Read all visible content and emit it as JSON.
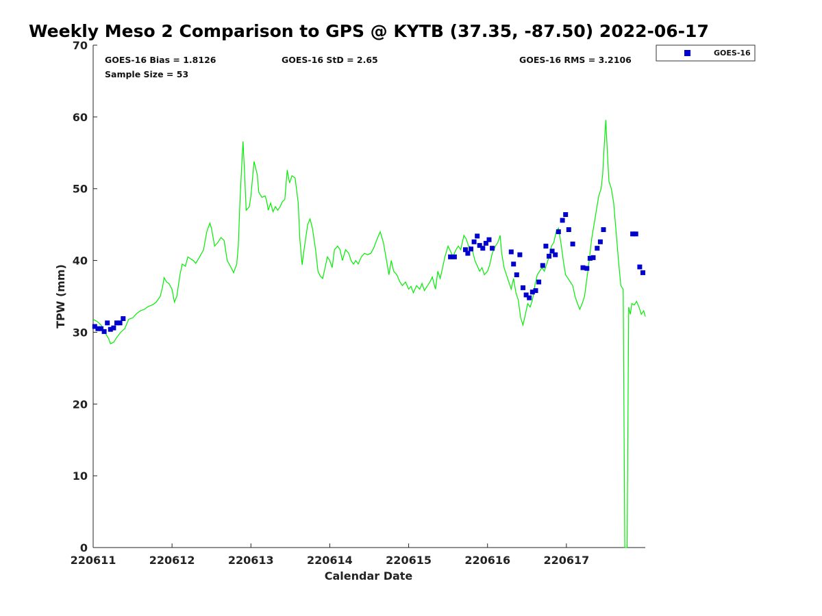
{
  "chart_data": {
    "type": "line",
    "title": "Weekly Meso 2 Comparison to GPS @ KYTB (37.35, -87.50) 2022-06-17",
    "xlabel": "Calendar Date",
    "ylabel": "TPW (mm)",
    "xlim": [
      0,
      7
    ],
    "ylim": [
      0,
      70
    ],
    "yticks": [
      0,
      10,
      20,
      30,
      40,
      50,
      60,
      70
    ],
    "xticks": [
      {
        "value": 0,
        "label": "220611"
      },
      {
        "value": 1,
        "label": "220612"
      },
      {
        "value": 2,
        "label": "220613"
      },
      {
        "value": 3,
        "label": "220614"
      },
      {
        "value": 4,
        "label": "220615"
      },
      {
        "value": 5,
        "label": "220616"
      },
      {
        "value": 6,
        "label": "220617"
      }
    ],
    "grid": false,
    "legend_position": "top-right-outside",
    "annotations": {
      "bias": "GOES-16 Bias = 1.8126",
      "std": "GOES-16 StD = 2.65",
      "rms": "GOES-16 RMS = 3.2106",
      "sample": "Sample Size = 53"
    },
    "series": [
      {
        "kind": "line",
        "color": "#00ee00",
        "points": [
          [
            0.0,
            31.8
          ],
          [
            0.05,
            31.5
          ],
          [
            0.1,
            31.0
          ],
          [
            0.15,
            30.0
          ],
          [
            0.2,
            29.0
          ],
          [
            0.22,
            28.4
          ],
          [
            0.26,
            28.6
          ],
          [
            0.3,
            29.3
          ],
          [
            0.35,
            30.0
          ],
          [
            0.4,
            30.5
          ],
          [
            0.45,
            31.8
          ],
          [
            0.5,
            32.0
          ],
          [
            0.55,
            32.6
          ],
          [
            0.6,
            33.0
          ],
          [
            0.65,
            33.2
          ],
          [
            0.7,
            33.6
          ],
          [
            0.75,
            33.8
          ],
          [
            0.8,
            34.2
          ],
          [
            0.85,
            35.0
          ],
          [
            0.88,
            36.3
          ],
          [
            0.9,
            37.6
          ],
          [
            0.93,
            37.0
          ],
          [
            0.96,
            36.8
          ],
          [
            1.0,
            36.0
          ],
          [
            1.03,
            34.2
          ],
          [
            1.06,
            35.0
          ],
          [
            1.1,
            38.0
          ],
          [
            1.13,
            39.5
          ],
          [
            1.17,
            39.2
          ],
          [
            1.2,
            40.5
          ],
          [
            1.24,
            40.2
          ],
          [
            1.27,
            40.0
          ],
          [
            1.3,
            39.6
          ],
          [
            1.35,
            40.5
          ],
          [
            1.4,
            41.5
          ],
          [
            1.44,
            44.0
          ],
          [
            1.48,
            45.2
          ],
          [
            1.5,
            44.5
          ],
          [
            1.54,
            42.0
          ],
          [
            1.58,
            42.5
          ],
          [
            1.62,
            43.2
          ],
          [
            1.66,
            42.8
          ],
          [
            1.7,
            40.0
          ],
          [
            1.75,
            39.0
          ],
          [
            1.78,
            38.3
          ],
          [
            1.82,
            39.5
          ],
          [
            1.84,
            42.0
          ],
          [
            1.86,
            48.0
          ],
          [
            1.88,
            52.5
          ],
          [
            1.9,
            56.6
          ],
          [
            1.92,
            52.0
          ],
          [
            1.94,
            47.0
          ],
          [
            1.98,
            47.5
          ],
          [
            2.0,
            49.0
          ],
          [
            2.04,
            53.8
          ],
          [
            2.08,
            52.0
          ],
          [
            2.1,
            49.5
          ],
          [
            2.14,
            48.8
          ],
          [
            2.18,
            49.0
          ],
          [
            2.2,
            48.3
          ],
          [
            2.22,
            47.0
          ],
          [
            2.25,
            48.0
          ],
          [
            2.28,
            46.8
          ],
          [
            2.31,
            47.5
          ],
          [
            2.34,
            47.0
          ],
          [
            2.37,
            47.5
          ],
          [
            2.4,
            48.2
          ],
          [
            2.43,
            48.5
          ],
          [
            2.46,
            52.6
          ],
          [
            2.49,
            50.8
          ],
          [
            2.52,
            51.8
          ],
          [
            2.56,
            51.5
          ],
          [
            2.6,
            48.0
          ],
          [
            2.62,
            43.0
          ],
          [
            2.65,
            39.4
          ],
          [
            2.68,
            42.0
          ],
          [
            2.72,
            45.0
          ],
          [
            2.75,
            45.8
          ],
          [
            2.78,
            44.5
          ],
          [
            2.82,
            41.5
          ],
          [
            2.85,
            38.5
          ],
          [
            2.88,
            37.8
          ],
          [
            2.91,
            37.5
          ],
          [
            2.94,
            39.0
          ],
          [
            2.97,
            40.5
          ],
          [
            3.0,
            40.0
          ],
          [
            3.03,
            39.0
          ],
          [
            3.06,
            41.5
          ],
          [
            3.1,
            42.0
          ],
          [
            3.13,
            41.5
          ],
          [
            3.16,
            40.0
          ],
          [
            3.2,
            41.5
          ],
          [
            3.24,
            41.0
          ],
          [
            3.27,
            40.0
          ],
          [
            3.3,
            39.5
          ],
          [
            3.33,
            40.0
          ],
          [
            3.36,
            39.5
          ],
          [
            3.4,
            40.5
          ],
          [
            3.44,
            41.0
          ],
          [
            3.48,
            40.8
          ],
          [
            3.52,
            41.0
          ],
          [
            3.56,
            41.8
          ],
          [
            3.6,
            43.0
          ],
          [
            3.64,
            44.0
          ],
          [
            3.68,
            42.5
          ],
          [
            3.72,
            40.0
          ],
          [
            3.75,
            38.0
          ],
          [
            3.78,
            40.0
          ],
          [
            3.81,
            38.5
          ],
          [
            3.85,
            38.0
          ],
          [
            3.89,
            37.0
          ],
          [
            3.92,
            36.5
          ],
          [
            3.96,
            37.0
          ],
          [
            4.0,
            36.0
          ],
          [
            4.03,
            36.4
          ],
          [
            4.06,
            35.5
          ],
          [
            4.1,
            36.5
          ],
          [
            4.14,
            36.0
          ],
          [
            4.17,
            36.8
          ],
          [
            4.2,
            35.8
          ],
          [
            4.24,
            36.5
          ],
          [
            4.27,
            37.0
          ],
          [
            4.3,
            37.7
          ],
          [
            4.34,
            36.0
          ],
          [
            4.37,
            38.5
          ],
          [
            4.4,
            37.5
          ],
          [
            4.43,
            39.0
          ],
          [
            4.46,
            40.5
          ],
          [
            4.5,
            42.0
          ],
          [
            4.53,
            41.3
          ],
          [
            4.56,
            40.5
          ],
          [
            4.6,
            41.5
          ],
          [
            4.63,
            42.0
          ],
          [
            4.66,
            41.5
          ],
          [
            4.7,
            43.5
          ],
          [
            4.73,
            43.0
          ],
          [
            4.76,
            42.0
          ],
          [
            4.8,
            41.8
          ],
          [
            4.84,
            40.0
          ],
          [
            4.88,
            39.0
          ],
          [
            4.9,
            38.5
          ],
          [
            4.93,
            39.0
          ],
          [
            4.96,
            38.0
          ],
          [
            5.0,
            38.5
          ],
          [
            5.03,
            39.5
          ],
          [
            5.06,
            41.0
          ],
          [
            5.1,
            42.0
          ],
          [
            5.13,
            42.5
          ],
          [
            5.16,
            43.5
          ],
          [
            5.18,
            41.0
          ],
          [
            5.21,
            39.0
          ],
          [
            5.24,
            38.0
          ],
          [
            5.27,
            37.0
          ],
          [
            5.3,
            36.0
          ],
          [
            5.33,
            37.5
          ],
          [
            5.36,
            35.5
          ],
          [
            5.39,
            34.5
          ],
          [
            5.42,
            32.0
          ],
          [
            5.45,
            31.0
          ],
          [
            5.48,
            32.5
          ],
          [
            5.51,
            34.0
          ],
          [
            5.54,
            33.5
          ],
          [
            5.57,
            34.5
          ],
          [
            5.6,
            36.5
          ],
          [
            5.63,
            38.0
          ],
          [
            5.66,
            38.5
          ],
          [
            5.69,
            39.0
          ],
          [
            5.72,
            38.5
          ],
          [
            5.75,
            39.5
          ],
          [
            5.78,
            40.5
          ],
          [
            5.81,
            42.0
          ],
          [
            5.84,
            42.5
          ],
          [
            5.87,
            44.0
          ],
          [
            5.9,
            44.5
          ],
          [
            5.93,
            42.5
          ],
          [
            5.96,
            40.0
          ],
          [
            5.99,
            38.0
          ],
          [
            6.02,
            37.5
          ],
          [
            6.05,
            37.0
          ],
          [
            6.08,
            36.5
          ],
          [
            6.11,
            35.0
          ],
          [
            6.14,
            34.0
          ],
          [
            6.17,
            33.2
          ],
          [
            6.2,
            34.0
          ],
          [
            6.23,
            35.0
          ],
          [
            6.26,
            37.5
          ],
          [
            6.29,
            40.0
          ],
          [
            6.32,
            43.0
          ],
          [
            6.35,
            45.0
          ],
          [
            6.38,
            47.0
          ],
          [
            6.41,
            49.0
          ],
          [
            6.44,
            50.0
          ],
          [
            6.46,
            52.0
          ],
          [
            6.48,
            56.0
          ],
          [
            6.5,
            59.6
          ],
          [
            6.52,
            55.0
          ],
          [
            6.54,
            51.0
          ],
          [
            6.57,
            50.0
          ],
          [
            6.6,
            48.0
          ],
          [
            6.63,
            44.0
          ],
          [
            6.66,
            40.0
          ],
          [
            6.69,
            36.5
          ],
          [
            6.72,
            36.0
          ],
          [
            6.74,
            0.0
          ],
          [
            6.77,
            0.0
          ],
          [
            6.79,
            33.5
          ],
          [
            6.81,
            32.5
          ],
          [
            6.83,
            34.0
          ],
          [
            6.86,
            33.8
          ],
          [
            6.89,
            34.3
          ],
          [
            6.92,
            33.5
          ],
          [
            6.95,
            32.5
          ],
          [
            6.98,
            33.0
          ],
          [
            7.0,
            32.2
          ]
        ]
      },
      {
        "kind": "scatter",
        "name": "GOES-16",
        "color": "#0000cc",
        "points": [
          [
            0.02,
            30.8
          ],
          [
            0.06,
            30.5
          ],
          [
            0.1,
            30.5
          ],
          [
            0.14,
            30.1
          ],
          [
            0.18,
            31.3
          ],
          [
            0.22,
            30.4
          ],
          [
            0.26,
            30.6
          ],
          [
            0.3,
            31.3
          ],
          [
            0.34,
            31.3
          ],
          [
            0.38,
            31.9
          ],
          [
            4.53,
            40.5
          ],
          [
            4.58,
            40.5
          ],
          [
            4.72,
            41.5
          ],
          [
            4.75,
            41.0
          ],
          [
            4.79,
            41.6
          ],
          [
            4.83,
            42.6
          ],
          [
            4.87,
            43.4
          ],
          [
            4.9,
            42.1
          ],
          [
            4.94,
            41.7
          ],
          [
            4.98,
            42.4
          ],
          [
            5.02,
            42.9
          ],
          [
            5.06,
            41.7
          ],
          [
            5.3,
            41.2
          ],
          [
            5.33,
            39.5
          ],
          [
            5.37,
            38.0
          ],
          [
            5.41,
            40.8
          ],
          [
            5.45,
            36.2
          ],
          [
            5.49,
            35.2
          ],
          [
            5.53,
            34.8
          ],
          [
            5.57,
            35.6
          ],
          [
            5.61,
            35.8
          ],
          [
            5.65,
            37.0
          ],
          [
            5.7,
            39.3
          ],
          [
            5.74,
            42.0
          ],
          [
            5.78,
            40.6
          ],
          [
            5.82,
            41.3
          ],
          [
            5.86,
            40.8
          ],
          [
            5.9,
            44.0
          ],
          [
            5.95,
            45.6
          ],
          [
            5.99,
            46.4
          ],
          [
            6.03,
            44.3
          ],
          [
            6.08,
            42.3
          ],
          [
            6.21,
            39.0
          ],
          [
            6.26,
            38.9
          ],
          [
            6.3,
            40.3
          ],
          [
            6.34,
            40.4
          ],
          [
            6.39,
            41.7
          ],
          [
            6.43,
            42.6
          ],
          [
            6.47,
            44.3
          ],
          [
            6.84,
            43.7
          ],
          [
            6.88,
            43.7
          ],
          [
            6.93,
            39.1
          ],
          [
            6.97,
            38.3
          ]
        ]
      }
    ]
  }
}
